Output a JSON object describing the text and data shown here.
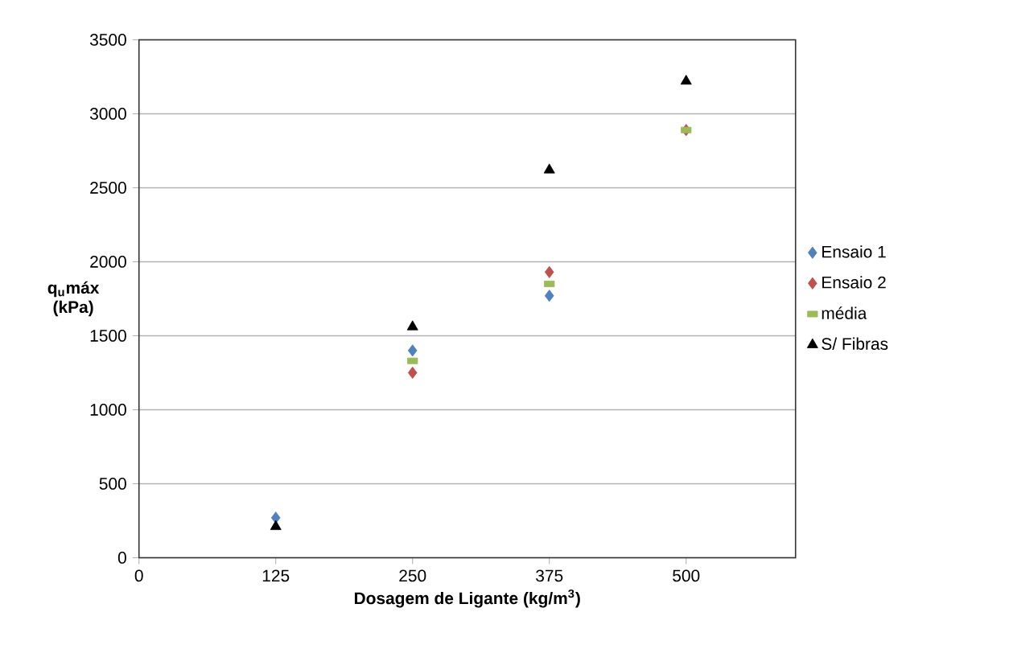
{
  "chart_data": {
    "type": "scatter",
    "xlabel": "Dosagem de Ligante (kg/m$^{3}$)",
    "ylabel": "q$_{u}$máx (kPa)",
    "xlim": [
      0,
      600
    ],
    "xticks": [
      0,
      125,
      250,
      375,
      500
    ],
    "ylim": [
      0,
      3500
    ],
    "yticks": [
      0,
      500,
      1000,
      1500,
      2000,
      2500,
      3000,
      3500
    ],
    "x": [
      125,
      250,
      375,
      500
    ],
    "grid": "y",
    "legend": "right",
    "series": [
      {
        "name": "Ensaio 1",
        "color": "#4f81bd",
        "marker": "diamond",
        "values": [
          270,
          1400,
          1770,
          null
        ]
      },
      {
        "name": "Ensaio 2",
        "color": "#c0504d",
        "marker": "diamond",
        "values": [
          null,
          1250,
          1930,
          2890
        ]
      },
      {
        "name": "média",
        "color": "#9bbb59",
        "marker": "square",
        "values": [
          null,
          1330,
          1850,
          2890
        ]
      },
      {
        "name": "S/ Fibras",
        "color": "#000000",
        "marker": "triangle",
        "values": [
          210,
          1560,
          2620,
          3220
        ]
      }
    ]
  }
}
